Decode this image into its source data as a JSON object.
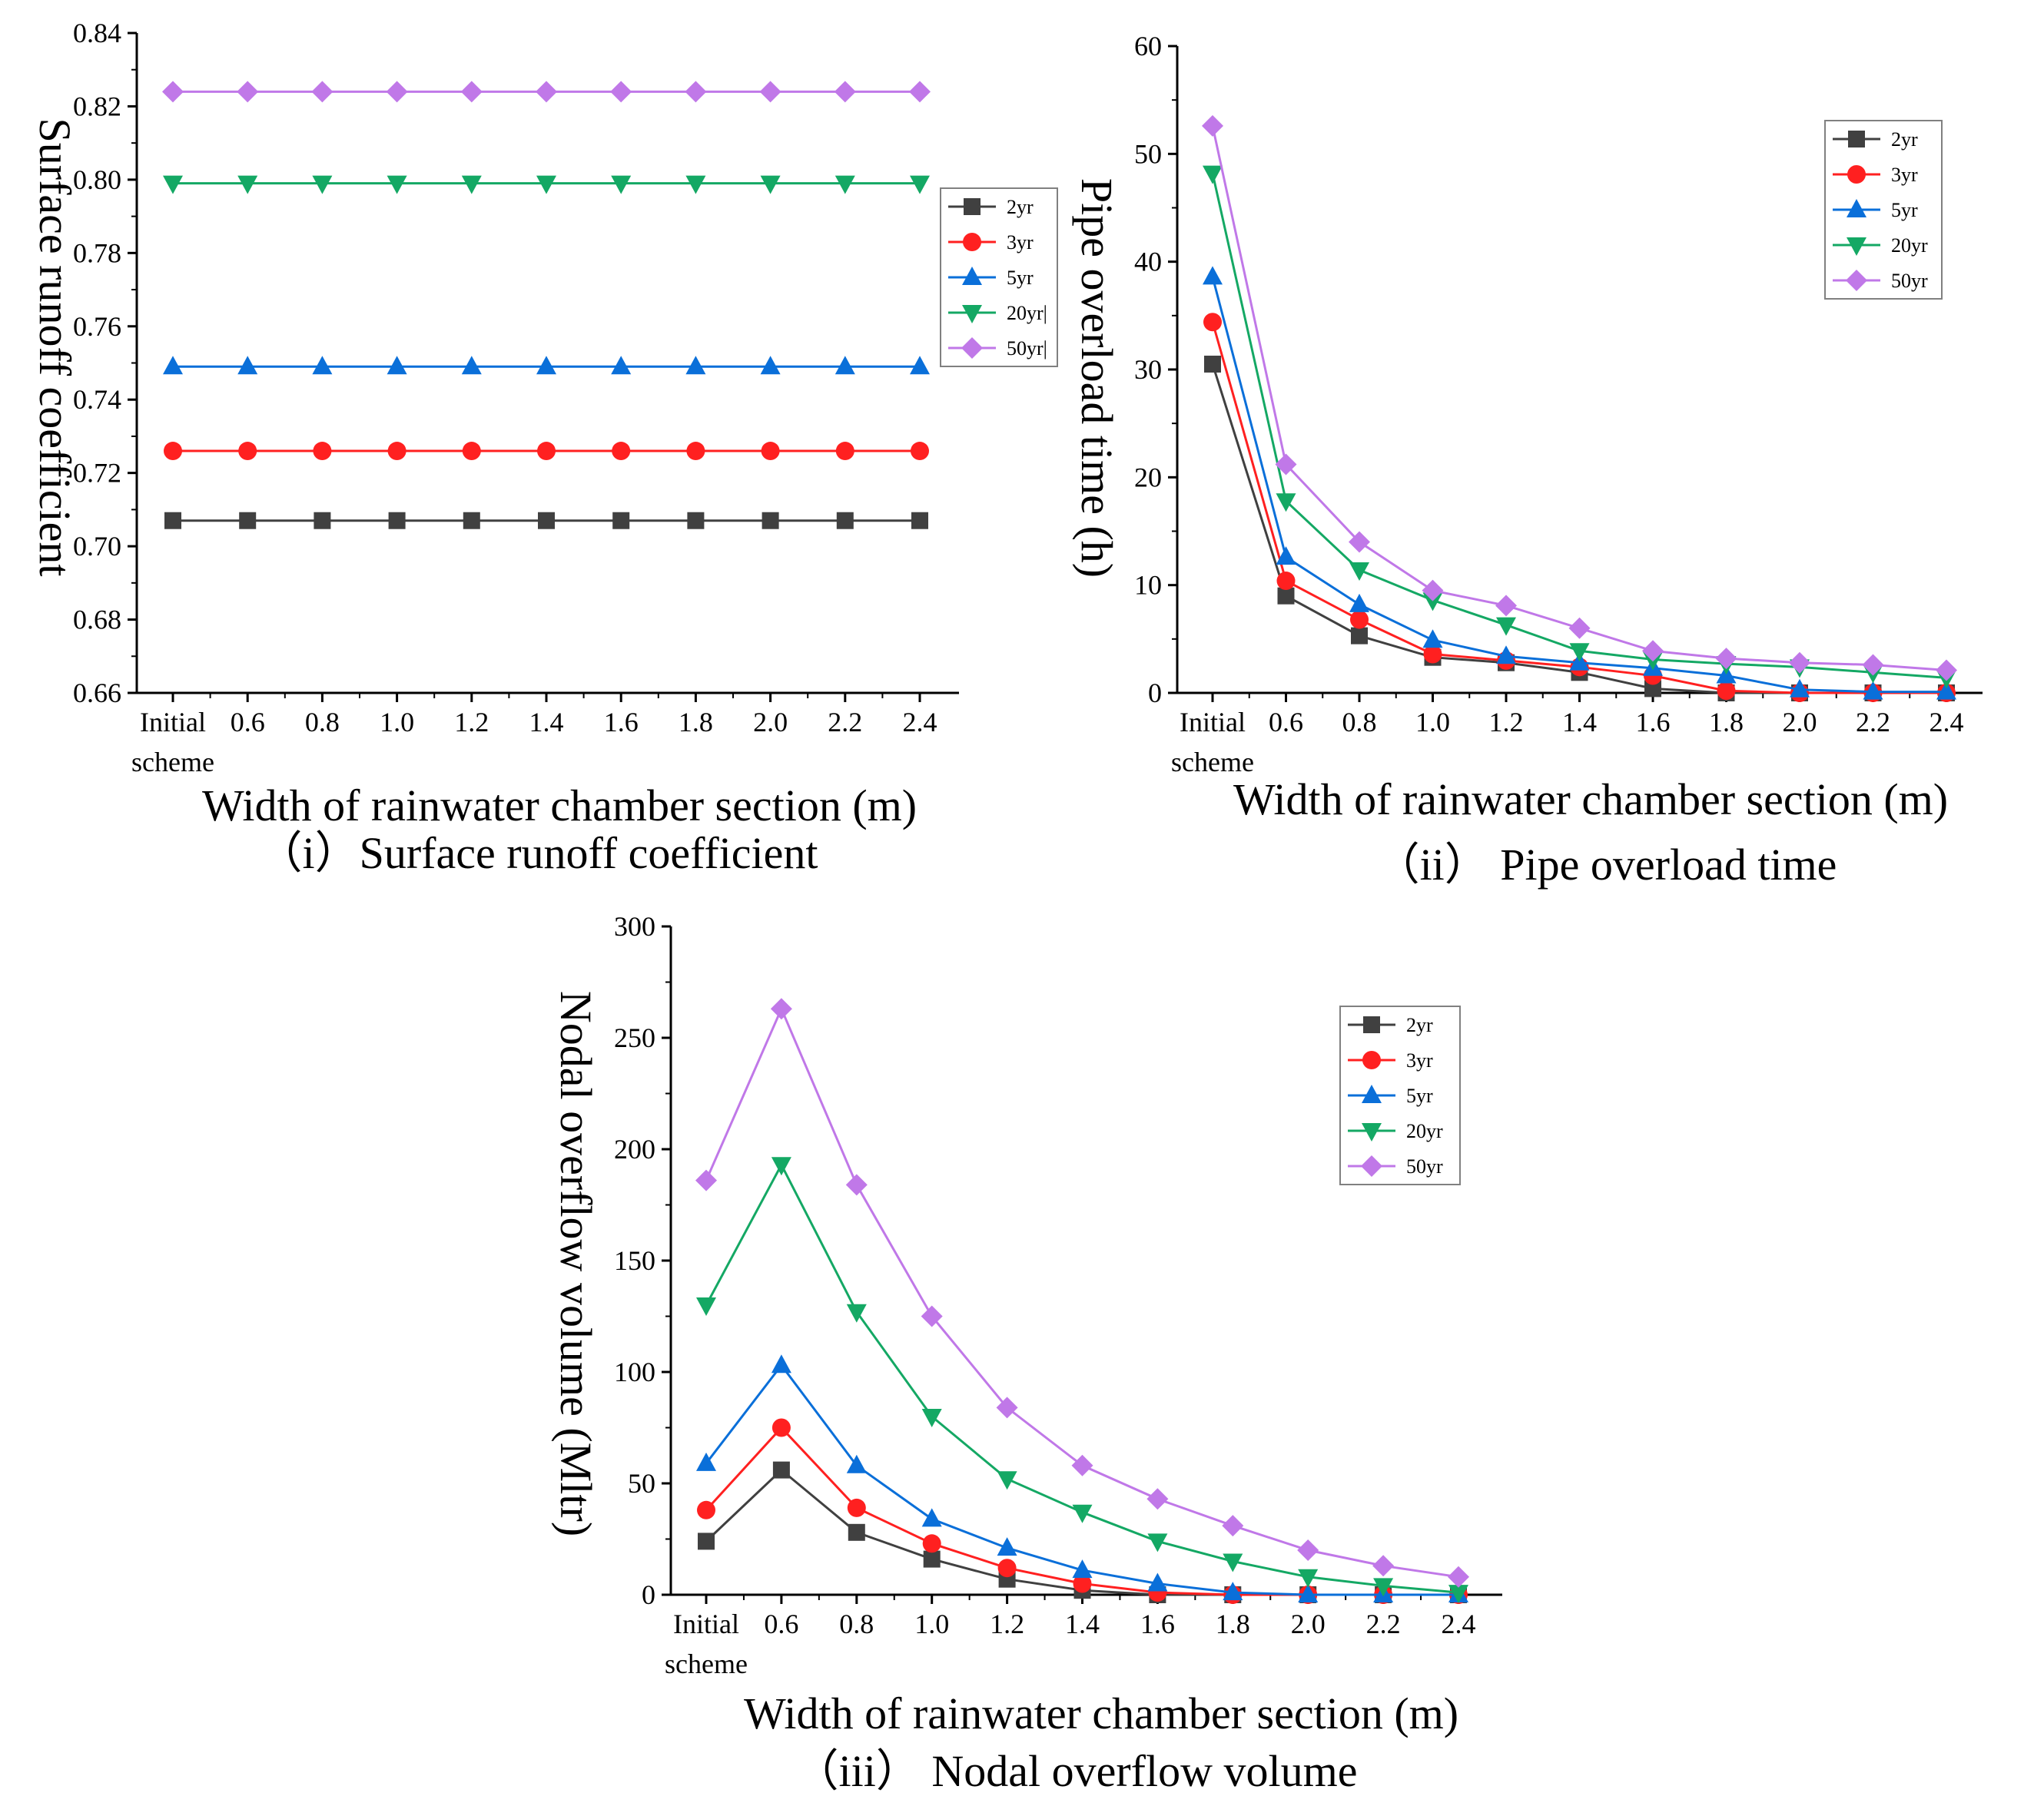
{
  "colors": {
    "2yr": "#404040",
    "3yr": "#ff2020",
    "5yr": "#0a6fd9",
    "20yr": "#14a864",
    "50yr": "#c078e8"
  },
  "chart_data": [
    {
      "id": "c1",
      "type": "line",
      "title": "",
      "caption": "（i）Surface runoff coefficient",
      "xlabel": "Width of rainwater chamber section (m)",
      "ylabel": "Surface runoff coefficient",
      "categories": [
        "Initial scheme",
        "0.6",
        "0.8",
        "1.0",
        "1.2",
        "1.4",
        "1.6",
        "1.8",
        "2.0",
        "2.2",
        "2.4"
      ],
      "cat_lines": [
        [
          "Initial",
          "scheme"
        ],
        [
          "0.6"
        ],
        [
          "0.8"
        ],
        [
          "1.0"
        ],
        [
          "1.2"
        ],
        [
          "1.4"
        ],
        [
          "1.6"
        ],
        [
          "1.8"
        ],
        [
          "2.0"
        ],
        [
          "2.2"
        ],
        [
          "2.4"
        ]
      ],
      "ylim": [
        0.66,
        0.84
      ],
      "yticks": [
        "0.66",
        "0.68",
        "0.70",
        "0.72",
        "0.74",
        "0.76",
        "0.78",
        "0.80",
        "0.82",
        "0.84"
      ],
      "legend_position": "right-middle",
      "legend_labels": [
        "2yr",
        "3yr",
        "5yr",
        "20yr|",
        "50yr|"
      ],
      "series": [
        {
          "name": "2yr",
          "values": [
            0.707,
            0.707,
            0.707,
            0.707,
            0.707,
            0.707,
            0.707,
            0.707,
            0.707,
            0.707,
            0.707
          ]
        },
        {
          "name": "3yr",
          "values": [
            0.726,
            0.726,
            0.726,
            0.726,
            0.726,
            0.726,
            0.726,
            0.726,
            0.726,
            0.726,
            0.726
          ]
        },
        {
          "name": "5yr",
          "values": [
            0.749,
            0.749,
            0.749,
            0.749,
            0.749,
            0.749,
            0.749,
            0.749,
            0.749,
            0.749,
            0.749
          ]
        },
        {
          "name": "20yr",
          "values": [
            0.799,
            0.799,
            0.799,
            0.799,
            0.799,
            0.799,
            0.799,
            0.799,
            0.799,
            0.799,
            0.799
          ]
        },
        {
          "name": "50yr",
          "values": [
            0.824,
            0.824,
            0.824,
            0.824,
            0.824,
            0.824,
            0.824,
            0.824,
            0.824,
            0.824,
            0.824
          ]
        }
      ]
    },
    {
      "id": "c2",
      "type": "line",
      "title": "",
      "caption": "（ii） Pipe overload time",
      "xlabel": "Width of rainwater chamber section (m)",
      "ylabel": "Pipe overload time (h)",
      "categories": [
        "Initial scheme",
        "0.6",
        "0.8",
        "1.0",
        "1.2",
        "1.4",
        "1.6",
        "1.8",
        "2.0",
        "2.2",
        "2.4"
      ],
      "cat_lines": [
        [
          "Initial",
          "scheme"
        ],
        [
          "0.6"
        ],
        [
          "0.8"
        ],
        [
          "1.0"
        ],
        [
          "1.2"
        ],
        [
          "1.4"
        ],
        [
          "1.6"
        ],
        [
          "1.8"
        ],
        [
          "2.0"
        ],
        [
          "2.2"
        ],
        [
          "2.4"
        ]
      ],
      "ylim": [
        0,
        60
      ],
      "yticks": [
        "0",
        "10",
        "20",
        "30",
        "40",
        "50",
        "60"
      ],
      "legend_position": "top-right",
      "legend_labels": [
        "2yr",
        "3yr",
        "5yr",
        "20yr",
        "50yr"
      ],
      "series": [
        {
          "name": "2yr",
          "values": [
            30.5,
            9.0,
            5.3,
            3.3,
            2.8,
            1.9,
            0.4,
            0.0,
            0.0,
            0.0,
            0.0
          ]
        },
        {
          "name": "3yr",
          "values": [
            34.4,
            10.4,
            6.8,
            3.6,
            3.0,
            2.4,
            1.6,
            0.2,
            0.0,
            0.0,
            0.0
          ]
        },
        {
          "name": "5yr",
          "values": [
            38.6,
            12.6,
            8.2,
            4.9,
            3.4,
            2.8,
            2.3,
            1.6,
            0.3,
            0.1,
            0.1
          ]
        },
        {
          "name": "20yr",
          "values": [
            48.2,
            17.8,
            11.4,
            8.6,
            6.3,
            3.9,
            3.1,
            2.7,
            2.4,
            1.9,
            1.4
          ]
        },
        {
          "name": "50yr",
          "values": [
            52.6,
            21.2,
            14.0,
            9.5,
            8.1,
            6.0,
            3.9,
            3.2,
            2.8,
            2.6,
            2.1
          ]
        }
      ]
    },
    {
      "id": "c3",
      "type": "line",
      "title": "",
      "caption": "（iii） Nodal overflow volume",
      "xlabel": "Width of rainwater chamber section (m)",
      "ylabel": "Nodal overflow volume (Mltr)",
      "categories": [
        "Initial scheme",
        "0.6",
        "0.8",
        "1.0",
        "1.2",
        "1.4",
        "1.6",
        "1.8",
        "2.0",
        "2.2",
        "2.4"
      ],
      "cat_lines": [
        [
          "Initial",
          "scheme"
        ],
        [
          "0.6"
        ],
        [
          "0.8"
        ],
        [
          "1.0"
        ],
        [
          "1.2"
        ],
        [
          "1.4"
        ],
        [
          "1.6"
        ],
        [
          "1.8"
        ],
        [
          "2.0"
        ],
        [
          "2.2"
        ],
        [
          "2.4"
        ]
      ],
      "ylim": [
        0,
        300
      ],
      "yticks": [
        "0",
        "50",
        "100",
        "150",
        "200",
        "250",
        "300"
      ],
      "legend_position": "top-right",
      "legend_labels": [
        "2yr",
        "3yr",
        "5yr",
        "20yr",
        "50yr"
      ],
      "series": [
        {
          "name": "2yr",
          "values": [
            24,
            56,
            28,
            16,
            7,
            2,
            0,
            0,
            0,
            0,
            0
          ]
        },
        {
          "name": "3yr",
          "values": [
            38,
            75,
            39,
            23,
            12,
            5,
            1,
            0,
            0,
            0,
            0
          ]
        },
        {
          "name": "5yr",
          "values": [
            59,
            103,
            58,
            34,
            21,
            11,
            5,
            1,
            0,
            0,
            0
          ]
        },
        {
          "name": "20yr",
          "values": [
            130,
            193,
            127,
            80,
            52,
            37,
            24,
            15,
            8,
            4,
            1
          ]
        },
        {
          "name": "50yr",
          "values": [
            186,
            263,
            184,
            125,
            84,
            58,
            43,
            31,
            20,
            13,
            8
          ]
        }
      ]
    }
  ]
}
